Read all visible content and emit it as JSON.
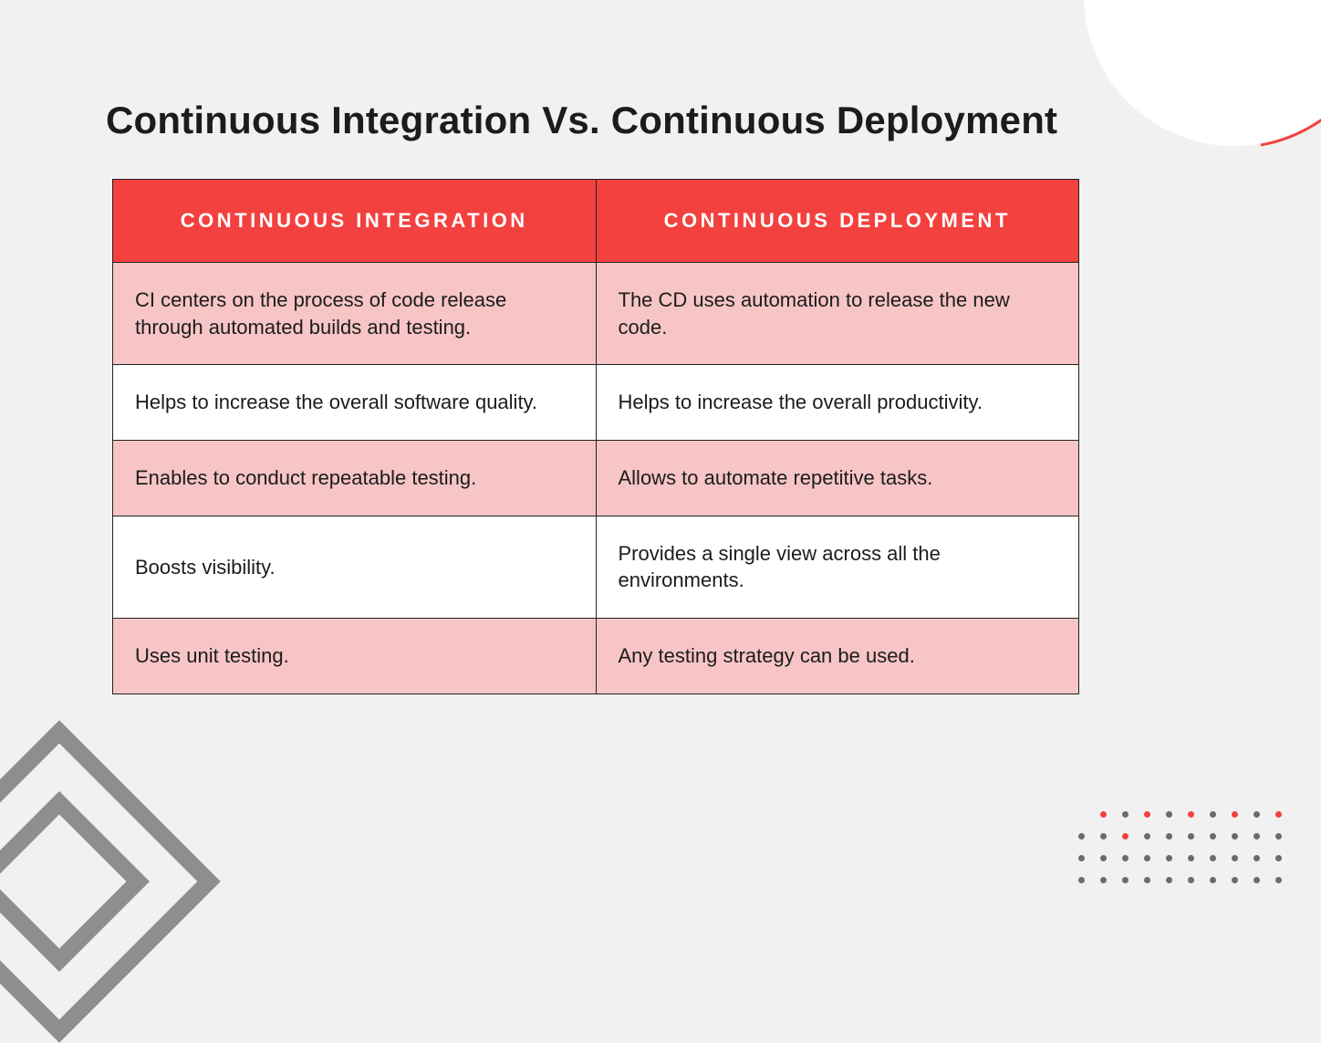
{
  "title": "Continuous Integration Vs. Continuous Deployment",
  "table": {
    "type": "table",
    "columns": [
      "CONTINUOUS INTEGRATION",
      "CONTINUOUS DEPLOYMENT"
    ],
    "rows": [
      [
        "CI centers on the process of code release through automated builds and testing.",
        "The CD uses automation to release the new code."
      ],
      [
        "Helps to increase the overall software quality.",
        "Helps to increase the overall productivity."
      ],
      [
        "Enables to conduct repeatable testing.",
        "Allows to automate repetitive tasks."
      ],
      [
        "Boosts visibility.",
        "Provides a single view across all the environments."
      ],
      [
        "Uses unit testing.",
        "Any testing strategy can be used."
      ]
    ],
    "header_bg": "#f3413f",
    "row_odd_bg": "#f7c5c6",
    "row_even_bg": "#ffffff",
    "border_color": "#222222",
    "header_font_color": "#ffffff",
    "body_font_color": "#1c1c1c",
    "header_fontsize": 22,
    "body_fontsize": 22,
    "column_widths_pct": [
      50,
      50
    ]
  },
  "colors": {
    "page_bg": "#f1f1f2",
    "accent": "#f3413f",
    "decor_gray": "#7c7c7c",
    "dot_gray": "#6b6b6b"
  },
  "decor": {
    "dot_grid": {
      "rows": 4,
      "cols": 10,
      "accent_positions": [
        [
          0,
          1
        ],
        [
          0,
          3
        ],
        [
          0,
          5
        ],
        [
          0,
          7
        ],
        [
          0,
          9
        ],
        [
          1,
          2
        ]
      ],
      "row_offsets_hidden_leading": [
        1,
        0,
        0,
        0
      ]
    }
  }
}
